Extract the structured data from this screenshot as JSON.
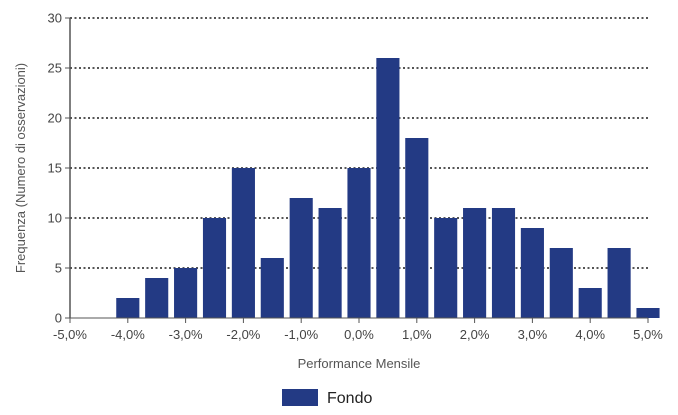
{
  "chart_data": {
    "type": "bar",
    "title": "",
    "xlabel": "Performance Mensile",
    "ylabel": "Frequenza (Numero di osservazioni)",
    "ylim": [
      0,
      30
    ],
    "xlim": [
      -5.0,
      5.0
    ],
    "y_ticks": [
      0,
      5,
      10,
      15,
      20,
      25,
      30
    ],
    "y_tick_labels": [
      "0",
      "5",
      "10",
      "15",
      "20",
      "25",
      "30"
    ],
    "x_ticks": [
      -5,
      -4,
      -3,
      -2,
      -1,
      0,
      1,
      2,
      3,
      4,
      5
    ],
    "x_tick_labels": [
      "-5,0%",
      "-4,0%",
      "-3,0%",
      "-2,0%",
      "-1,0%",
      "0,0%",
      "1,0%",
      "2,0%",
      "3,0%",
      "4,0%",
      "5,0%"
    ],
    "bin_centers": [
      -4.0,
      -3.5,
      -3.0,
      -2.5,
      -2.0,
      -1.5,
      -1.0,
      -0.5,
      0.0,
      0.5,
      1.0,
      1.5,
      2.0,
      2.5,
      3.0,
      3.5,
      4.0,
      4.5,
      5.0
    ],
    "series": [
      {
        "name": "Fondo",
        "values": [
          2,
          4,
          5,
          10,
          15,
          6,
          12,
          11,
          15,
          26,
          18,
          10,
          11,
          11,
          9,
          7,
          3,
          7,
          1
        ],
        "color": "#233a84"
      }
    ],
    "grid": true,
    "grid_style": "dotted",
    "legend_position": "bottom-center"
  }
}
